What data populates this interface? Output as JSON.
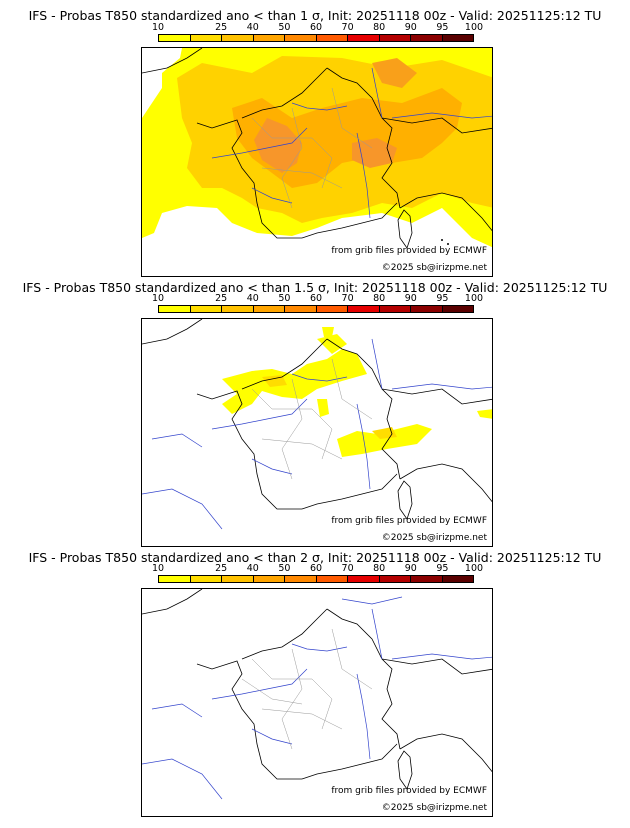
{
  "colorbar": {
    "ticks": [
      "10",
      "25",
      "40",
      "50",
      "60",
      "70",
      "80",
      "90",
      "95",
      "100"
    ],
    "colors": [
      "#ffff00",
      "#ffdd00",
      "#ffc200",
      "#ffa500",
      "#ff8800",
      "#ff5a00",
      "#e60000",
      "#b40000",
      "#8b0000",
      "#5a0000"
    ]
  },
  "panels": [
    {
      "title": "IFS - Probas T850  standardized ano < than 1 σ, Init: 20251118 00z - Valid: 20251125:12 TU",
      "credit_source": "from grib files provided by ECMWF",
      "credit_copyright": "©2025 sb@irizpme.net"
    },
    {
      "title": "IFS - Probas T850  standardized ano < than 1.5 σ, Init: 20251118 00z - Valid: 20251125:12 TU",
      "credit_source": "from grib files provided by ECMWF",
      "credit_copyright": "©2025 sb@irizpme.net"
    },
    {
      "title": "IFS - Probas T850  standardized ano < than 2 σ, Init: 20251118 00z - Valid: 20251125:12 TU",
      "credit_source": "from grib files provided by ECMWF",
      "credit_copyright": "©2025 sb@irizpme.net"
    }
  ]
}
